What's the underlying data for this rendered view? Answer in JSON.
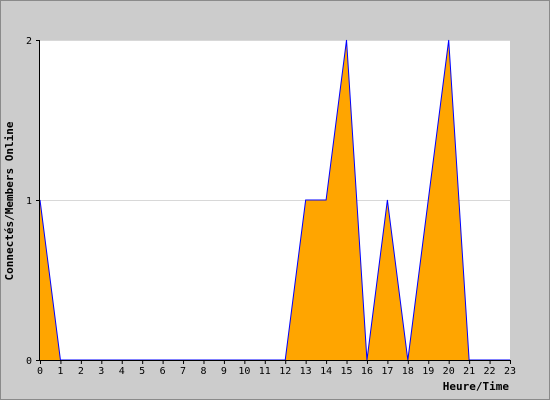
{
  "chart_data": {
    "type": "area",
    "title": "",
    "xlabel": "Heure/Time",
    "ylabel": "Connectés/Members Online",
    "x": [
      0,
      1,
      2,
      3,
      4,
      5,
      6,
      7,
      8,
      9,
      10,
      11,
      12,
      13,
      14,
      15,
      16,
      17,
      18,
      19,
      20,
      21,
      22,
      23
    ],
    "xticks": [
      "0",
      "1",
      "2",
      "3",
      "4",
      "5",
      "6",
      "7",
      "8",
      "9",
      "10",
      "11",
      "12",
      "13",
      "14",
      "15",
      "16",
      "17",
      "18",
      "19",
      "20",
      "21",
      "22",
      "23"
    ],
    "series": [
      {
        "values": [
          1,
          0,
          0,
          0,
          0,
          0,
          0,
          0,
          0,
          0,
          0,
          0,
          0,
          1,
          1,
          2,
          0,
          1,
          0,
          1,
          2,
          0,
          0,
          0
        ]
      }
    ],
    "yticks": [
      "0",
      "1",
      "2"
    ],
    "ylim": [
      0,
      2
    ],
    "xlim": [
      0,
      23
    ],
    "grid": "horizontal",
    "colors": {
      "fill": "#ffa500",
      "line": "#0000ff",
      "plot_background": "#ffffff",
      "grid": "#d8d8d8",
      "frame_background": "#cccccc"
    }
  }
}
